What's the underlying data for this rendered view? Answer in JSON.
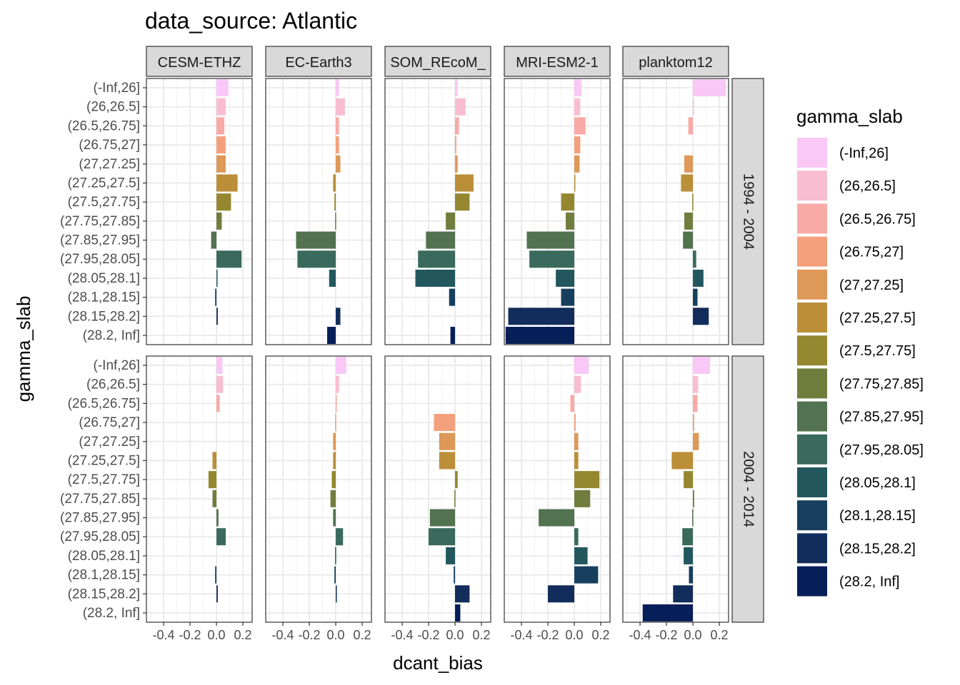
{
  "chart_data": {
    "type": "bar",
    "orientation": "horizontal",
    "title": "data_source: Atlantic",
    "xlabel": "dcant_bias",
    "ylabel": "gamma_slab",
    "xlim": [
      -0.53,
      0.27
    ],
    "x_ticks": [
      -0.4,
      -0.2,
      0.0,
      0.2
    ],
    "x_tick_labels": [
      "-0.4",
      "-0.2",
      "0.0",
      "0.2"
    ],
    "grid": true,
    "legend_position": "right",
    "legend_title": "gamma_slab",
    "categories": [
      "(-Inf,26]",
      "(26,26.5]",
      "(26.5,26.75]",
      "(26.75,27]",
      "(27,27.25]",
      "(27.25,27.5]",
      "(27.5,27.75]",
      "(27.75,27.85]",
      "(27.85,27.95]",
      "(27.95,28.05]",
      "(28.05,28.1]",
      "(28.1,28.15]",
      "(28.15,28.2]",
      "(28.2, Inf]"
    ],
    "colors": [
      "#F9C8F6",
      "#F9BDD1",
      "#F9AAA6",
      "#F4A07C",
      "#DE9858",
      "#BB8E38",
      "#948730",
      "#717D3D",
      "#537250",
      "#396A5C",
      "#23575E",
      "#173F5D",
      "#122D5B",
      "#061F58"
    ],
    "columns": [
      "CESM-ETHZ",
      "EC-Earth3",
      "FESOM_REcoM_",
      "MRI-ESM2-1",
      "planktom12"
    ],
    "column_labels": [
      "CESM-ETHZ",
      "EC-Earth3",
      "SOM_REcoM_",
      "MRI-ESM2-1",
      "planktom12"
    ],
    "rows": [
      "1994 - 2004",
      "2004 - 2014"
    ],
    "panels": [
      [
        [
          0.09,
          0.07,
          0.06,
          0.07,
          0.07,
          0.16,
          0.11,
          0.04,
          -0.04,
          0.19,
          0.005,
          -0.01,
          0.01,
          0.0
        ],
        [
          0.025,
          0.07,
          0.025,
          0.025,
          0.035,
          -0.02,
          -0.01,
          -0.005,
          -0.3,
          -0.29,
          -0.05,
          0.0,
          0.035,
          -0.065
        ],
        [
          0.02,
          0.08,
          0.03,
          0.01,
          0.02,
          0.14,
          0.11,
          -0.07,
          -0.22,
          -0.28,
          -0.3,
          -0.045,
          0.0,
          -0.035
        ],
        [
          0.055,
          0.045,
          0.085,
          0.045,
          0.04,
          0.005,
          -0.1,
          -0.065,
          -0.36,
          -0.34,
          -0.14,
          -0.1,
          -0.5,
          -0.52
        ],
        [
          0.25,
          0.005,
          -0.035,
          0.0,
          -0.065,
          -0.09,
          -0.005,
          -0.065,
          -0.075,
          0.025,
          0.08,
          0.035,
          0.12,
          0.0
        ]
      ],
      [
        [
          0.045,
          0.05,
          0.025,
          0.0,
          0.0,
          -0.03,
          -0.06,
          -0.03,
          0.015,
          0.07,
          0.0,
          -0.01,
          0.01,
          0.0
        ],
        [
          0.08,
          0.025,
          0.005,
          -0.005,
          -0.02,
          -0.02,
          -0.03,
          -0.04,
          -0.02,
          0.055,
          -0.005,
          -0.01,
          0.005,
          0.0
        ],
        [
          0.0,
          0.0,
          0.0,
          -0.16,
          -0.12,
          -0.12,
          0.02,
          -0.005,
          -0.19,
          -0.2,
          -0.07,
          -0.01,
          0.11,
          0.04
        ],
        [
          0.11,
          0.05,
          -0.03,
          0.01,
          0.03,
          0.03,
          0.19,
          0.12,
          -0.27,
          0.03,
          0.1,
          0.18,
          -0.2,
          0.0
        ],
        [
          0.13,
          0.04,
          0.035,
          0.01,
          0.045,
          -0.16,
          -0.07,
          0.01,
          -0.005,
          -0.08,
          -0.07,
          -0.03,
          -0.15,
          -0.38
        ]
      ]
    ]
  }
}
